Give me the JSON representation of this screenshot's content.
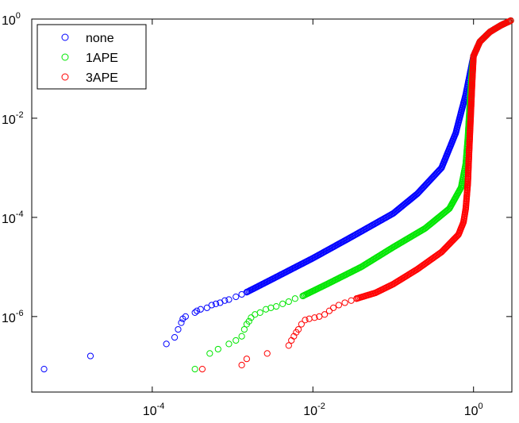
{
  "chart_data": {
    "type": "scatter",
    "xscale": "log",
    "yscale": "log",
    "xlim": [
      3.16e-06,
      3.0
    ],
    "ylim": [
      3e-08,
      1.0
    ],
    "x_ticks": [
      {
        "value": 0.0001,
        "base": "10",
        "exp": "-4"
      },
      {
        "value": 0.01,
        "base": "10",
        "exp": "-2"
      },
      {
        "value": 1,
        "base": "10",
        "exp": "0"
      }
    ],
    "y_ticks": [
      {
        "value": 1e-06,
        "base": "10",
        "exp": "-6"
      },
      {
        "value": 0.0001,
        "base": "10",
        "exp": "-4"
      },
      {
        "value": 0.01,
        "base": "10",
        "exp": "-2"
      },
      {
        "value": 1,
        "base": "10",
        "exp": "0"
      }
    ],
    "legend_position": "top-left",
    "grid": false,
    "series": [
      {
        "name": "none",
        "color": "#0000ff",
        "points": [
          [
            4.5e-06,
            8.7e-08
          ],
          [
            1.7e-05,
            1.6e-07
          ],
          [
            0.00015,
            2.8e-07
          ],
          [
            0.00019,
            3.8e-07
          ],
          [
            0.00021,
            5.5e-07
          ],
          [
            0.00023,
            7.5e-07
          ],
          [
            0.00024,
            9e-07
          ],
          [
            0.00026,
            1e-06
          ],
          [
            0.00034,
            1.2e-06
          ],
          [
            0.00036,
            1.3e-06
          ],
          [
            0.0004,
            1.4e-06
          ],
          [
            0.00048,
            1.5e-06
          ],
          [
            0.00055,
            1.7e-06
          ],
          [
            0.00062,
            1.8e-06
          ],
          [
            0.0007,
            1.9e-06
          ],
          [
            0.0008,
            2.1e-06
          ],
          [
            0.0009,
            2.2e-06
          ],
          [
            0.0011,
            2.5e-06
          ],
          [
            0.0013,
            2.8e-06
          ],
          [
            0.0015,
            3.1e-06
          ]
        ],
        "curve": [
          [
            0.0015,
            3.1e-06
          ],
          [
            0.003,
            5.5e-06
          ],
          [
            0.01,
            1.5e-05
          ],
          [
            0.03,
            4e-05
          ],
          [
            0.1,
            0.00012
          ],
          [
            0.2,
            0.0003
          ],
          [
            0.4,
            0.001
          ],
          [
            0.6,
            0.005
          ],
          [
            0.8,
            0.03
          ],
          [
            1.0,
            0.18
          ],
          [
            1.2,
            0.35
          ],
          [
            1.6,
            0.55
          ],
          [
            2.2,
            0.75
          ],
          [
            3.0,
            0.95
          ]
        ]
      },
      {
        "name": "1APE",
        "color": "#00e600",
        "points": [
          [
            0.00034,
            8.7e-08
          ],
          [
            0.00052,
            1.8e-07
          ],
          [
            0.00066,
            2.2e-07
          ],
          [
            0.0009,
            2.8e-07
          ],
          [
            0.0011,
            3.3e-07
          ],
          [
            0.0013,
            4e-07
          ],
          [
            0.0014,
            5.5e-07
          ],
          [
            0.0015,
            7e-07
          ],
          [
            0.0016,
            8e-07
          ],
          [
            0.0017,
            9.5e-07
          ],
          [
            0.0019,
            1.1e-06
          ],
          [
            0.0022,
            1.2e-06
          ],
          [
            0.0026,
            1.4e-06
          ],
          [
            0.003,
            1.5e-06
          ],
          [
            0.0035,
            1.6e-06
          ],
          [
            0.0042,
            1.8e-06
          ],
          [
            0.005,
            2e-06
          ],
          [
            0.006,
            2.3e-06
          ],
          [
            0.0075,
            2.6e-06
          ]
        ],
        "curve": [
          [
            0.0075,
            2.6e-06
          ],
          [
            0.015,
            4.5e-06
          ],
          [
            0.04,
            1e-05
          ],
          [
            0.1,
            2.5e-05
          ],
          [
            0.25,
            6e-05
          ],
          [
            0.5,
            0.00015
          ],
          [
            0.7,
            0.0004
          ],
          [
            0.8,
            0.0012
          ],
          [
            0.85,
            0.004
          ],
          [
            0.9,
            0.02
          ],
          [
            0.95,
            0.08
          ],
          [
            1.0,
            0.18
          ],
          [
            1.2,
            0.35
          ],
          [
            1.6,
            0.55
          ],
          [
            2.2,
            0.75
          ],
          [
            3.0,
            0.95
          ]
        ]
      },
      {
        "name": "3APE",
        "color": "#ff0000",
        "points": [
          [
            0.00042,
            8.7e-08
          ],
          [
            0.0013,
            1.05e-07
          ],
          [
            0.0015,
            1.4e-07
          ],
          [
            0.0027,
            1.8e-07
          ],
          [
            0.005,
            2.6e-07
          ],
          [
            0.0054,
            3.3e-07
          ],
          [
            0.0058,
            4e-07
          ],
          [
            0.0062,
            4.8e-07
          ],
          [
            0.0066,
            5.5e-07
          ],
          [
            0.0072,
            7e-07
          ],
          [
            0.008,
            8.5e-07
          ],
          [
            0.009,
            9e-07
          ],
          [
            0.0105,
            9.5e-07
          ],
          [
            0.012,
            1e-06
          ],
          [
            0.014,
            1.1e-06
          ],
          [
            0.016,
            1.3e-06
          ],
          [
            0.018,
            1.5e-06
          ],
          [
            0.021,
            1.7e-06
          ],
          [
            0.025,
            1.9e-06
          ],
          [
            0.03,
            2.1e-06
          ],
          [
            0.035,
            2.3e-06
          ]
        ],
        "curve": [
          [
            0.035,
            2.3e-06
          ],
          [
            0.06,
            3e-06
          ],
          [
            0.1,
            4.5e-06
          ],
          [
            0.2,
            9e-06
          ],
          [
            0.4,
            2e-05
          ],
          [
            0.65,
            4.5e-05
          ],
          [
            0.75,
            8e-05
          ],
          [
            0.8,
            0.00015
          ],
          [
            0.85,
            0.0005
          ],
          [
            0.88,
            0.002
          ],
          [
            0.92,
            0.01
          ],
          [
            0.96,
            0.05
          ],
          [
            1.0,
            0.18
          ],
          [
            1.2,
            0.35
          ],
          [
            1.6,
            0.55
          ],
          [
            2.2,
            0.75
          ],
          [
            3.0,
            0.95
          ]
        ]
      }
    ]
  }
}
